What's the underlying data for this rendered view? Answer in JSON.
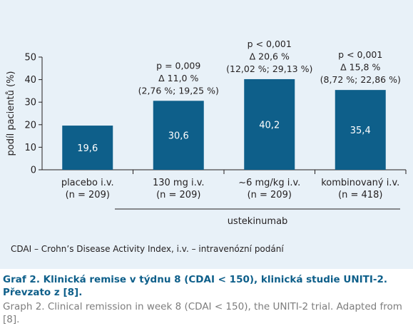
{
  "chart_data": {
    "type": "bar",
    "ylabel": "podíl pacientů (%)",
    "ylim": [
      0,
      50
    ],
    "yticks": [
      "0",
      "10",
      "20",
      "30",
      "40",
      "50"
    ],
    "categories": [
      {
        "line1": "placebo i.v.",
        "line2": "(n = 209)"
      },
      {
        "line1": "130 mg i.v.",
        "line2": "(n = 209)"
      },
      {
        "line1": "~6 mg/kg i.v.",
        "line2": "(n = 209)"
      },
      {
        "line1": "kombinovaný i.v.",
        "line2": "(n = 418)"
      }
    ],
    "values": [
      19.6,
      30.6,
      40.2,
      35.4
    ],
    "value_labels": [
      "19,6",
      "30,6",
      "40,2",
      "35,4"
    ],
    "annotations": [
      null,
      [
        "p = 0,009",
        "Δ 11,0 %",
        "(2,76 %; 19,25 %)"
      ],
      [
        "p < 0,001",
        "Δ 20,6 %",
        "(12,02 %; 29,13 %)"
      ],
      [
        "p < 0,001",
        "Δ 15,8 %",
        "(8,72 %; 22,86 %)"
      ]
    ],
    "group_label": "ustekinumab",
    "bar_color": "#0e5f8a",
    "grid": false
  },
  "footnote": "CDAI – Crohn’s Disease Activity Index, i.v. – intravenózní podání",
  "caption": {
    "czech": "Graf 2. Klinická remise v týdnu 8 (CDAI < 150), klinická studie UNITI-2. Převzato z [8].",
    "english": "Graph 2. Clinical remission in week 8 (CDAI < 150), the UNITI-2 trial. Adapted from [8]."
  }
}
